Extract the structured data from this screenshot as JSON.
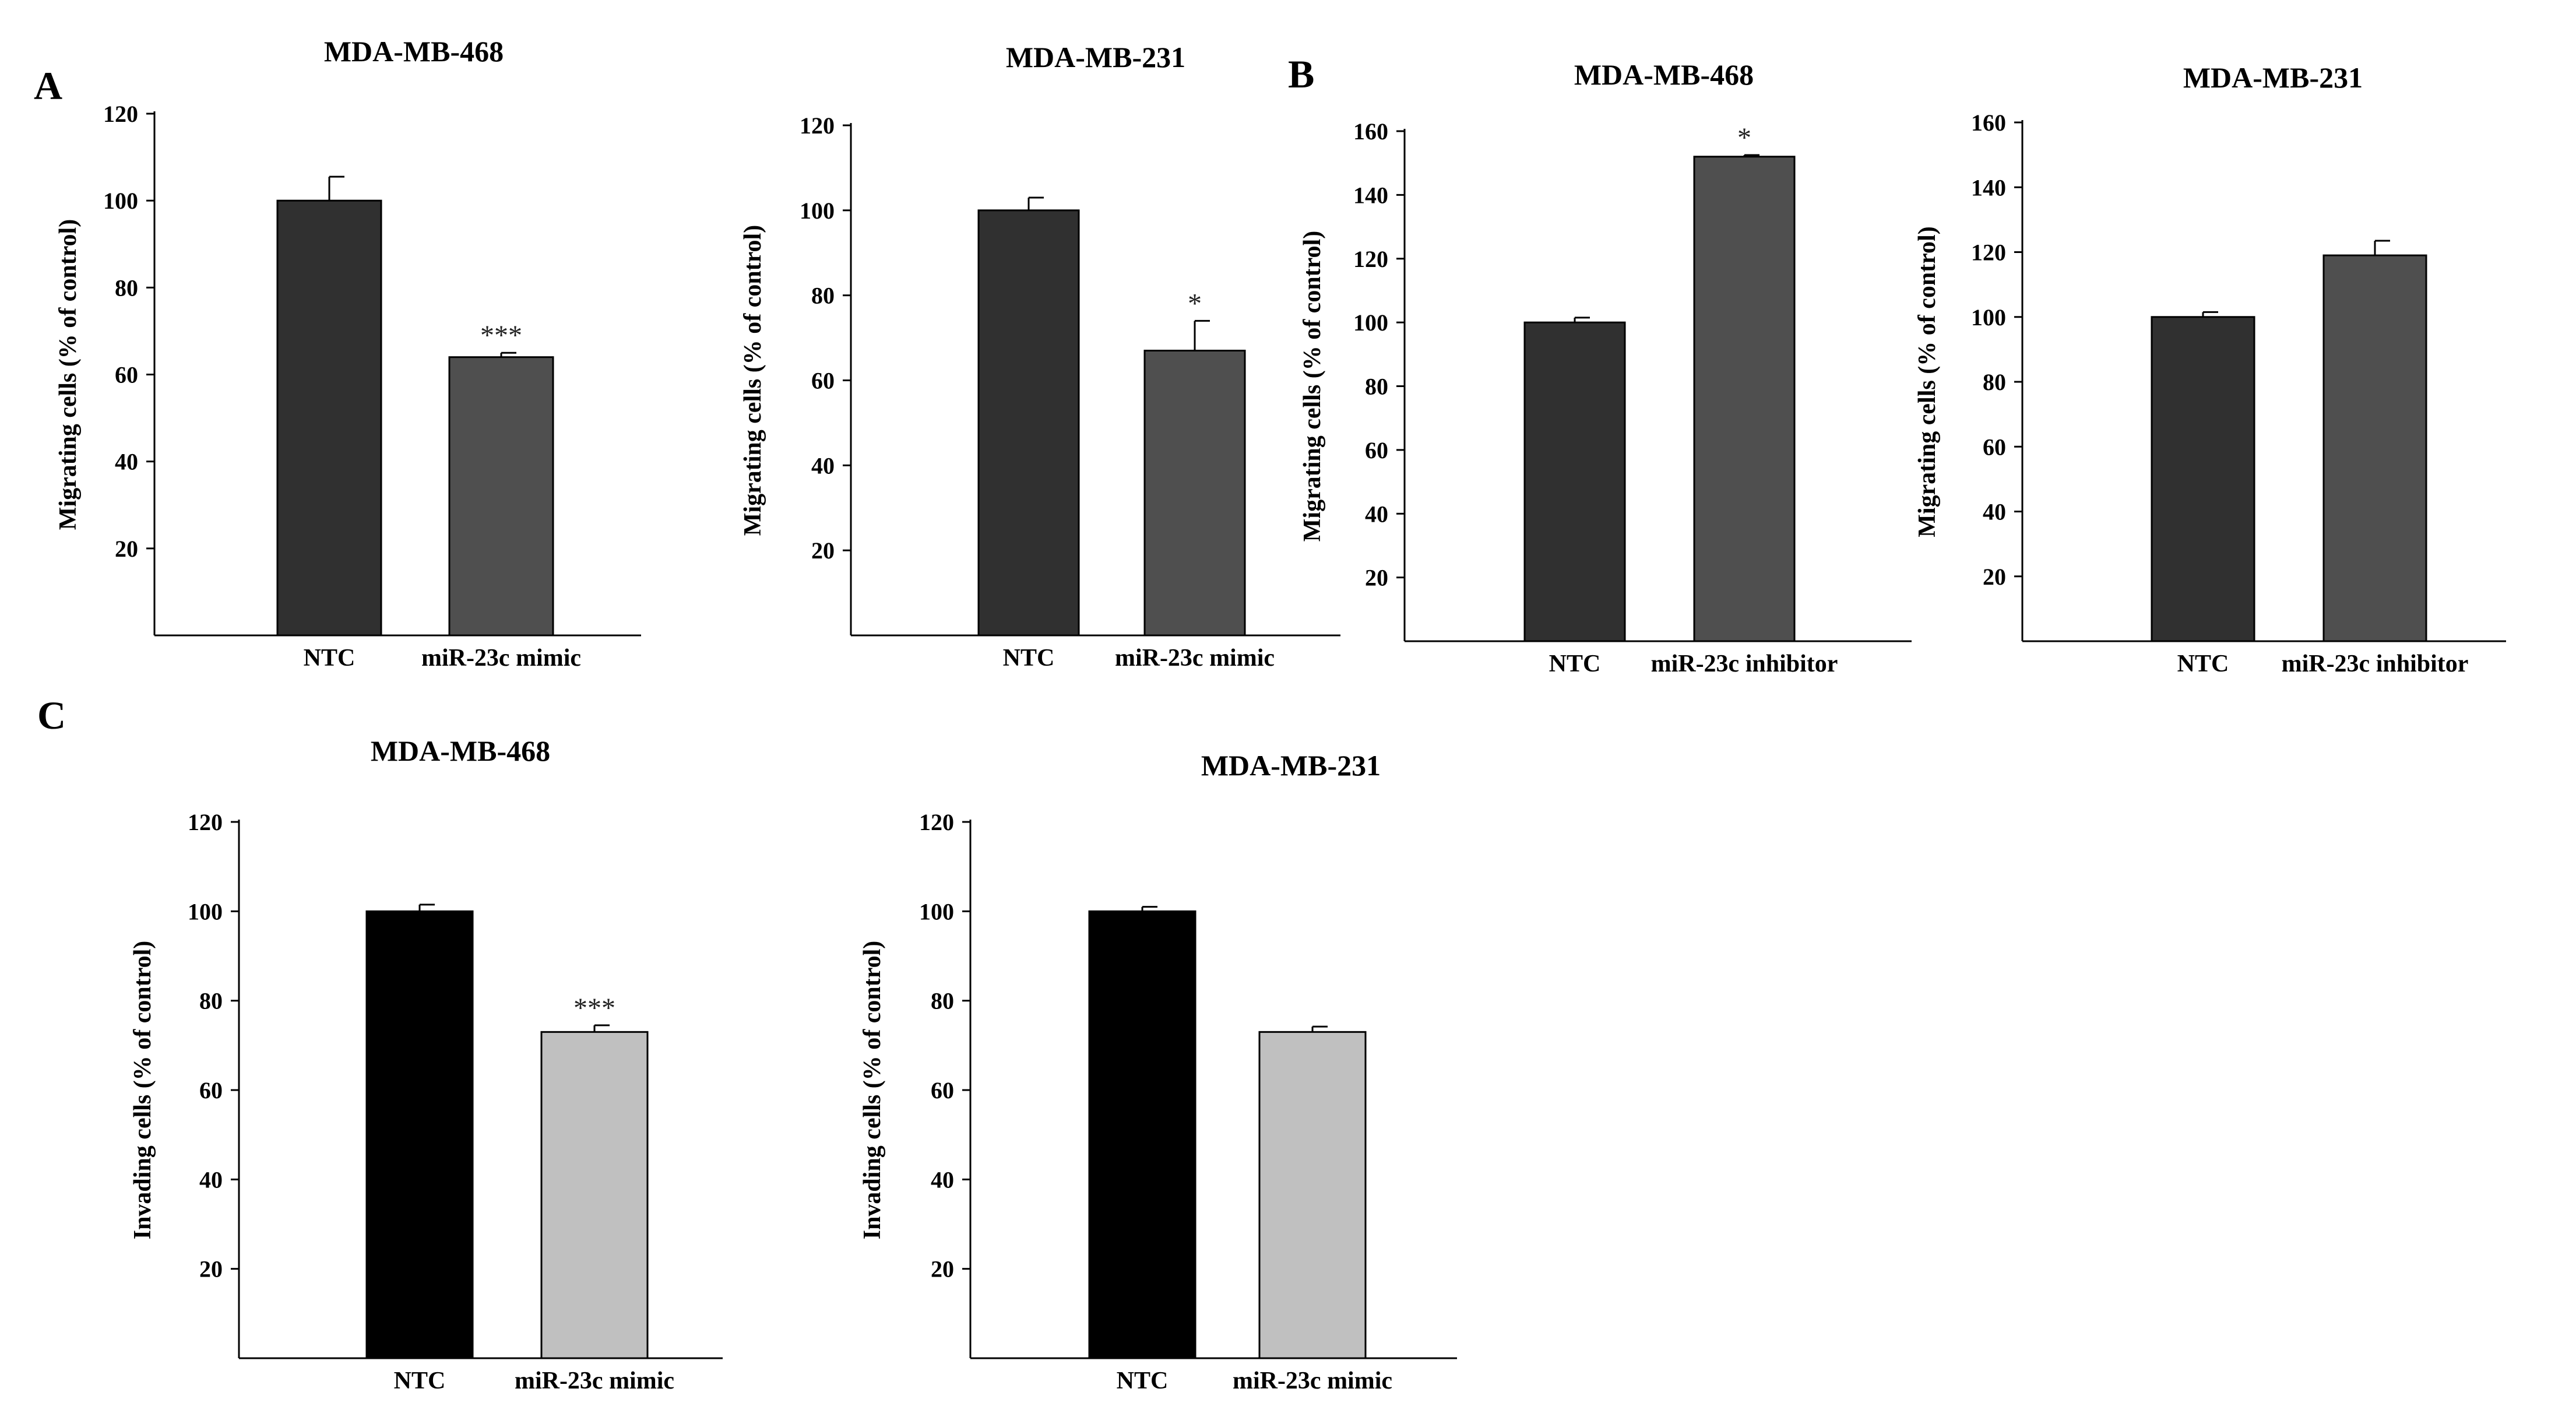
{
  "panel_labels": [
    "A",
    "B",
    "C"
  ],
  "chart_data": [
    {
      "type": "bar",
      "panel": "A",
      "title": "MDA-MB-468",
      "ylabel": "Migrating cells (% of control)",
      "xlabel": "",
      "ylim": [
        0,
        120
      ],
      "yticks": [
        20,
        40,
        60,
        80,
        100,
        120
      ],
      "categories": [
        "NTC",
        "miR-23c mimic"
      ],
      "values": [
        100,
        64
      ],
      "errors": [
        5.5,
        1
      ],
      "annotations": [
        "",
        "***"
      ],
      "colors": [
        "#303030",
        "#4f4f4f"
      ]
    },
    {
      "type": "bar",
      "panel": "A",
      "title": "MDA-MB-231",
      "ylabel": "Migrating cells (% of control)",
      "xlabel": "",
      "ylim": [
        0,
        120
      ],
      "yticks": [
        20,
        40,
        60,
        80,
        100,
        120
      ],
      "categories": [
        "NTC",
        "miR-23c mimic"
      ],
      "values": [
        100,
        67
      ],
      "errors": [
        3,
        7
      ],
      "annotations": [
        "",
        "*"
      ],
      "colors": [
        "#303030",
        "#4f4f4f"
      ]
    },
    {
      "type": "bar",
      "panel": "B",
      "title": "MDA-MB-468",
      "ylabel": "Migrating cells (% of control)",
      "xlabel": "",
      "ylim": [
        0,
        160
      ],
      "yticks": [
        20,
        40,
        60,
        80,
        100,
        120,
        140,
        160
      ],
      "categories": [
        "NTC",
        "miR-23c inhibitor"
      ],
      "values": [
        100,
        152
      ],
      "errors": [
        1.5,
        0.5
      ],
      "annotations": [
        "",
        "*"
      ],
      "colors": [
        "#303030",
        "#4f4f4f"
      ]
    },
    {
      "type": "bar",
      "panel": "B",
      "title": "MDA-MB-231",
      "ylabel": "Migrating cells (% of control)",
      "xlabel": "",
      "ylim": [
        0,
        160
      ],
      "yticks": [
        20,
        40,
        60,
        80,
        100,
        120,
        140,
        160
      ],
      "categories": [
        "NTC",
        "miR-23c inhibitor"
      ],
      "values": [
        100,
        119
      ],
      "errors": [
        1.5,
        4.5
      ],
      "annotations": [
        "",
        ""
      ],
      "colors": [
        "#303030",
        "#4f4f4f"
      ]
    },
    {
      "type": "bar",
      "panel": "C",
      "title": "MDA-MB-468",
      "ylabel": "Invading cells (% of control)",
      "xlabel": "",
      "ylim": [
        0,
        120
      ],
      "yticks": [
        20,
        40,
        60,
        80,
        100,
        120
      ],
      "categories": [
        "NTC",
        "miR-23c mimic"
      ],
      "values": [
        100,
        73
      ],
      "errors": [
        1.5,
        1.5
      ],
      "annotations": [
        "",
        "***"
      ],
      "colors": [
        "#000000",
        "#c0c0c0"
      ]
    },
    {
      "type": "bar",
      "panel": "C",
      "title": "MDA-MB-231",
      "ylabel": "Invading cells (% of control)",
      "xlabel": "",
      "ylim": [
        0,
        120
      ],
      "yticks": [
        20,
        40,
        60,
        80,
        100,
        120
      ],
      "categories": [
        "NTC",
        "miR-23c mimic"
      ],
      "values": [
        100,
        73
      ],
      "errors": [
        1,
        1.2
      ],
      "annotations": [
        "",
        ""
      ],
      "colors": [
        "#000000",
        "#c0c0c0"
      ]
    }
  ]
}
